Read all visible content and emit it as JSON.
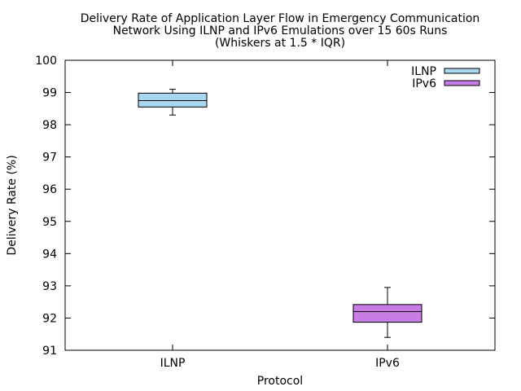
{
  "chart_data": {
    "type": "boxplot",
    "title_lines": [
      "Delivery Rate of Application Layer Flow in Emergency Communication",
      "Network Using ILNP and IPv6 Emulations over 15 60s Runs",
      "(Whiskers at 1.5 * IQR)"
    ],
    "xlabel": "Protocol",
    "ylabel": "Delivery Rate (%)",
    "ylim": [
      91,
      100
    ],
    "yticks": [
      "91",
      "92",
      "93",
      "94",
      "95",
      "96",
      "97",
      "98",
      "99",
      "100"
    ],
    "categories": [
      "ILNP",
      "IPv6"
    ],
    "series": [
      {
        "name": "ILNP",
        "color": "#a8d8f0",
        "whisker_low": 98.3,
        "q1": 98.55,
        "median": 98.75,
        "q3": 98.98,
        "whisker_high": 99.1
      },
      {
        "name": "IPv6",
        "color": "#c77ce6",
        "whisker_low": 91.4,
        "q1": 91.87,
        "median": 92.2,
        "q3": 92.42,
        "whisker_high": 92.95
      }
    ],
    "legend_position": "top-right",
    "grid": false
  }
}
